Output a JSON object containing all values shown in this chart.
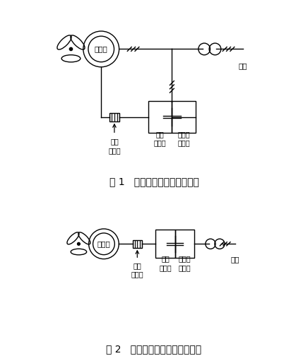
{
  "bg_color": "#ffffff",
  "line_color": "#000000",
  "fig1_title": "图 1   双馈机组机侧滤波器范围",
  "fig2_title": "图 2   全功率机组机侧滤波器范围",
  "label1_1": "机侧\n滤波器",
  "label1_2": "机侧\n变流器",
  "label1_3": "电网侧\n变流器",
  "label_generator": "发电机",
  "label_grid": "电网",
  "font_size_title": 10,
  "font_size_label": 7
}
